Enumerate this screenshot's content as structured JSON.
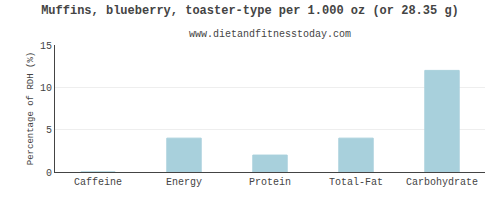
{
  "chart_data": {
    "type": "bar",
    "title": "Muffins, blueberry, toaster-type per 1.000 oz (or 28.35 g)",
    "subtitle": "www.dietandfitnesstoday.com",
    "categories": [
      "Caffeine",
      "Energy",
      "Protein",
      "Total-Fat",
      "Carbohydrate"
    ],
    "values": [
      0,
      4.0,
      2.0,
      4.0,
      12.0
    ],
    "color": "#a8d0dc",
    "ylabel": "Percentage of RDH (%)",
    "ylim": [
      0,
      15
    ],
    "yticks": [
      0,
      5,
      10,
      15
    ],
    "grid": true
  }
}
